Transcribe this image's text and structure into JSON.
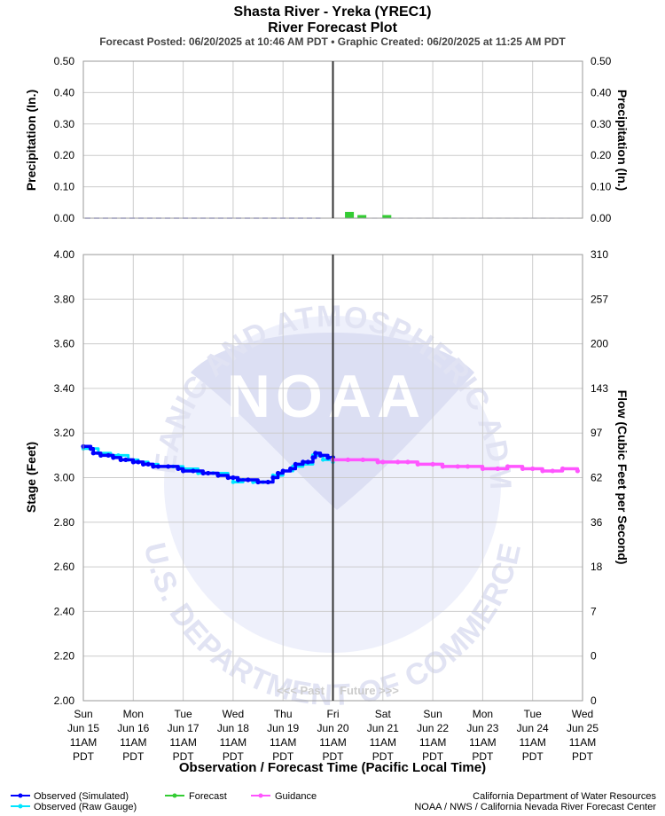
{
  "header": {
    "title": "Shasta River - Yreka (YREC1)",
    "subtitle": "River Forecast Plot",
    "posted": "Forecast Posted: 06/20/2025 at 10:46 AM PDT  •  Graphic Created: 06/20/2025 at 11:25 AM PDT"
  },
  "watermark": {
    "agency_ring": "NATIONAL OCEANIC AND ATMOSPHERIC ADMINISTRATION",
    "dept_ring": "U.S. DEPARTMENT OF COMMERCE",
    "logo": "NOAA"
  },
  "annotations": {
    "past": "<<< Past",
    "future": "Future >>>"
  },
  "legend": {
    "observed_sim": "Observed (Simulated)",
    "observed_raw": "Observed (Raw Gauge)",
    "forecast": "Forecast",
    "guidance": "Guidance"
  },
  "credits": {
    "line1": "California Department of Water Resources",
    "line2": "NOAA / NWS / California Nevada River Forecast Center"
  },
  "colors": {
    "observed_sim": "#0000ff",
    "observed_raw": "#00e5ff",
    "forecast": "#33cc33",
    "guidance": "#ff55ff",
    "now_line": "#333333",
    "grid": "#cccccc"
  },
  "chart_data": [
    {
      "type": "bar",
      "panel": "precipitation",
      "ylabel_left": "Precipitation (In.)",
      "ylabel_right": "Precipitation (In.)",
      "ylim": [
        0,
        0.5
      ],
      "yticks": [
        "0.00",
        "0.10",
        "0.20",
        "0.30",
        "0.40",
        "0.50"
      ],
      "observed_dashed_zero": true,
      "series": [
        {
          "name": "Forecast",
          "x": [
            5.33,
            5.58,
            6.08
          ],
          "values": [
            0.02,
            0.01,
            0.01
          ]
        }
      ]
    },
    {
      "type": "line",
      "panel": "stage",
      "xlabel": "Observation / Forecast Time (Pacific Local Time)",
      "ylabel_left": "Stage (Feet)",
      "ylabel_right": "Flow (Cubic Feet per Second)",
      "ylim": [
        2.0,
        4.0
      ],
      "yticks": [
        "2.00",
        "2.20",
        "2.40",
        "2.60",
        "2.80",
        "3.00",
        "3.20",
        "3.40",
        "3.60",
        "3.80",
        "4.00"
      ],
      "flow_ticks": [
        "0",
        "0",
        "7",
        "18",
        "36",
        "62",
        "97",
        "143",
        "200",
        "257",
        "310"
      ],
      "x_ticks": [
        [
          "Sun",
          "Jun 15",
          "11AM",
          "PDT"
        ],
        [
          "Mon",
          "Jun 16",
          "11AM",
          "PDT"
        ],
        [
          "Tue",
          "Jun 17",
          "11AM",
          "PDT"
        ],
        [
          "Wed",
          "Jun 18",
          "11AM",
          "PDT"
        ],
        [
          "Thu",
          "Jun 19",
          "11AM",
          "PDT"
        ],
        [
          "Fri",
          "Jun 20",
          "11AM",
          "PDT"
        ],
        [
          "Sat",
          "Jun 21",
          "11AM",
          "PDT"
        ],
        [
          "Sun",
          "Jun 22",
          "11AM",
          "PDT"
        ],
        [
          "Mon",
          "Jun 23",
          "11AM",
          "PDT"
        ],
        [
          "Tue",
          "Jun 24",
          "11AM",
          "PDT"
        ],
        [
          "Wed",
          "Jun 25",
          "11AM",
          "PDT"
        ]
      ],
      "x_range_days": [
        0,
        10
      ],
      "now_day": 5.0,
      "series": [
        {
          "name": "Observed (Simulated)",
          "x": [
            0,
            0.15,
            0.2,
            0.35,
            0.5,
            0.6,
            0.75,
            0.85,
            1.0,
            1.1,
            1.2,
            1.3,
            1.4,
            1.5,
            1.7,
            1.9,
            2.0,
            2.2,
            2.4,
            2.5,
            2.7,
            2.9,
            3.0,
            3.1,
            3.3,
            3.5,
            3.7,
            3.8,
            3.9,
            4.0,
            4.15,
            4.25,
            4.4,
            4.5,
            4.6,
            4.65,
            4.75,
            4.9,
            5.0
          ],
          "values": [
            3.14,
            3.13,
            3.11,
            3.1,
            3.1,
            3.09,
            3.08,
            3.08,
            3.07,
            3.07,
            3.06,
            3.06,
            3.05,
            3.05,
            3.05,
            3.04,
            3.03,
            3.03,
            3.02,
            3.02,
            3.01,
            3.0,
            3.0,
            2.99,
            2.99,
            2.98,
            2.98,
            3.0,
            3.02,
            3.03,
            3.04,
            3.06,
            3.07,
            3.07,
            3.09,
            3.11,
            3.1,
            3.09,
            3.09
          ]
        },
        {
          "name": "Observed (Raw Gauge)",
          "x": [
            0,
            0.3,
            0.55,
            0.7,
            0.9,
            1.1,
            1.3,
            1.5,
            1.8,
            2.0,
            2.3,
            2.6,
            2.9,
            3.0,
            3.2,
            3.4,
            3.6,
            3.8,
            4.0,
            4.2,
            4.4,
            4.6,
            4.8,
            5.0
          ],
          "values": [
            3.13,
            3.11,
            3.1,
            3.1,
            3.08,
            3.07,
            3.06,
            3.05,
            3.05,
            3.04,
            3.02,
            3.02,
            3.0,
            2.98,
            2.99,
            2.98,
            2.98,
            3.01,
            3.03,
            3.05,
            3.06,
            3.1,
            3.08,
            3.07
          ]
        },
        {
          "name": "Guidance",
          "x": [
            5.0,
            5.3,
            5.6,
            5.9,
            6.0,
            6.3,
            6.5,
            6.7,
            7.0,
            7.2,
            7.5,
            7.7,
            8.0,
            8.3,
            8.5,
            8.8,
            9.0,
            9.2,
            9.4,
            9.6,
            9.9
          ],
          "values": [
            3.08,
            3.08,
            3.08,
            3.07,
            3.07,
            3.07,
            3.07,
            3.06,
            3.06,
            3.05,
            3.05,
            3.05,
            3.04,
            3.04,
            3.05,
            3.04,
            3.04,
            3.03,
            3.03,
            3.04,
            3.03
          ]
        }
      ]
    }
  ]
}
